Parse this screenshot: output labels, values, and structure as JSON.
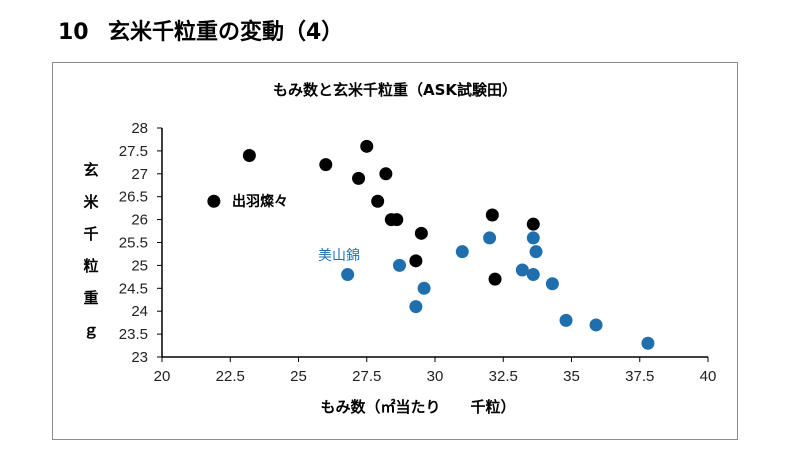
{
  "page": {
    "heading_number": "10",
    "heading_text": "玄米千粒重の変動（4）"
  },
  "colors": {
    "dewa": "#000000",
    "miyama": "#1f6fae",
    "axis": "#000000",
    "frame": "#8c8c8c"
  },
  "chart_data": {
    "type": "scatter",
    "title": "もみ数と玄米千粒重（ASK試験田）",
    "xlabel": "もみ数（㎡当たり　　千粒）",
    "ylabel": "玄米千粒重ｇ",
    "xlim": [
      20,
      40
    ],
    "ylim": [
      23,
      28
    ],
    "xticks": [
      "20",
      "22.5",
      "25",
      "27.5",
      "30",
      "32.5",
      "35",
      "37.5",
      "40"
    ],
    "yticks": [
      "23",
      "23.5",
      "24",
      "24.5",
      "25",
      "25.5",
      "26",
      "26.5",
      "27",
      "27.5",
      "28"
    ],
    "grid": false,
    "series": [
      {
        "name": "出羽燦々",
        "color": "#000000",
        "points": [
          [
            21.9,
            26.4
          ],
          [
            23.2,
            27.4
          ],
          [
            26.0,
            27.2
          ],
          [
            27.2,
            26.9
          ],
          [
            27.5,
            27.6
          ],
          [
            27.9,
            26.4
          ],
          [
            28.2,
            27.0
          ],
          [
            28.4,
            26.0
          ],
          [
            28.6,
            26.0
          ],
          [
            29.3,
            25.1
          ],
          [
            29.5,
            25.7
          ],
          [
            32.1,
            26.1
          ],
          [
            32.2,
            24.7
          ],
          [
            33.6,
            25.9
          ]
        ]
      },
      {
        "name": "美山錦",
        "color": "#1f6fae",
        "points": [
          [
            26.8,
            24.8
          ],
          [
            28.7,
            25.0
          ],
          [
            29.3,
            24.1
          ],
          [
            29.6,
            24.5
          ],
          [
            31.0,
            25.3
          ],
          [
            32.0,
            25.6
          ],
          [
            33.2,
            24.9
          ],
          [
            33.6,
            25.6
          ],
          [
            33.6,
            24.8
          ],
          [
            33.7,
            25.3
          ],
          [
            34.3,
            24.6
          ],
          [
            34.8,
            23.8
          ],
          [
            35.9,
            23.7
          ],
          [
            37.8,
            23.3
          ]
        ]
      }
    ]
  }
}
